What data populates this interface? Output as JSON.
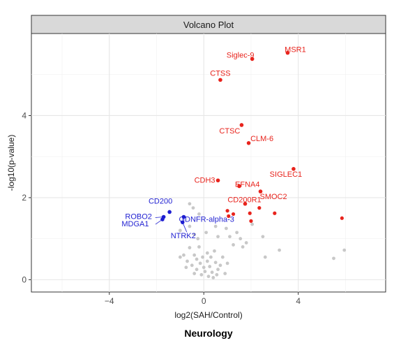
{
  "chart_data": {
    "type": "scatter",
    "title": "Volcano Plot",
    "caption": "Neurology",
    "xlabel": "log2(SAH/Control)",
    "ylabel": "-log10(p-value)",
    "xlim": [
      -7.3,
      7.7
    ],
    "ylim": [
      -0.3,
      6.0
    ],
    "x_ticks": [
      -4,
      0,
      4
    ],
    "y_ticks": [
      0,
      2,
      4
    ],
    "grid": true,
    "colors": {
      "up": "#e8231c",
      "down": "#1f1fd1",
      "ns": "#c8c8c8",
      "strip": "#d9d9d9"
    },
    "labeled_points": [
      {
        "label": "MSR1",
        "x": 3.55,
        "y": 5.53,
        "group": "up"
      },
      {
        "label": "Siglec-9",
        "x": 2.05,
        "y": 5.38,
        "group": "up"
      },
      {
        "label": "CTSS",
        "x": 0.7,
        "y": 4.87,
        "group": "up"
      },
      {
        "label": "CTSC",
        "x": 1.6,
        "y": 3.77,
        "group": "up"
      },
      {
        "label": "CLM-6",
        "x": 1.9,
        "y": 3.33,
        "group": "up"
      },
      {
        "label": "SIGLEC1",
        "x": 3.8,
        "y": 2.7,
        "group": "up"
      },
      {
        "label": "CDH3",
        "x": 0.6,
        "y": 2.42,
        "group": "up"
      },
      {
        "label": "EFNA4",
        "x": 1.5,
        "y": 2.28,
        "group": "up"
      },
      {
        "label": "SMOC2",
        "x": 2.4,
        "y": 2.15,
        "group": "up"
      },
      {
        "label": "CD200R1",
        "x": 1.75,
        "y": 1.85,
        "group": "up"
      },
      {
        "label": "CD200",
        "x": -1.45,
        "y": 1.65,
        "group": "down"
      },
      {
        "label": "ROBO2",
        "x": -1.7,
        "y": 1.53,
        "group": "down"
      },
      {
        "label": "MDGA1",
        "x": -1.75,
        "y": 1.47,
        "group": "down"
      },
      {
        "label": "GDNFR-alpha-3",
        "x": -0.85,
        "y": 1.53,
        "group": "down"
      },
      {
        "label": "NTRK2",
        "x": -0.9,
        "y": 1.4,
        "group": "down"
      }
    ],
    "other_up_points": [
      {
        "x": 2.35,
        "y": 1.75
      },
      {
        "x": 1.0,
        "y": 1.68
      },
      {
        "x": 1.25,
        "y": 1.6
      },
      {
        "x": 1.95,
        "y": 1.62
      },
      {
        "x": 3.0,
        "y": 1.62
      },
      {
        "x": 5.85,
        "y": 1.5
      },
      {
        "x": 1.05,
        "y": 1.55
      },
      {
        "x": 2.0,
        "y": 1.43
      }
    ],
    "ns_points": [
      {
        "x": -0.6,
        "y": 1.85
      },
      {
        "x": -0.45,
        "y": 1.75
      },
      {
        "x": -0.2,
        "y": 1.6
      },
      {
        "x": -0.6,
        "y": 1.3
      },
      {
        "x": -1.0,
        "y": 1.2
      },
      {
        "x": -0.4,
        "y": 1.1
      },
      {
        "x": -0.25,
        "y": 1.0
      },
      {
        "x": 0.1,
        "y": 1.15
      },
      {
        "x": 0.5,
        "y": 1.3
      },
      {
        "x": 0.6,
        "y": 1.05
      },
      {
        "x": 0.95,
        "y": 1.25
      },
      {
        "x": 1.1,
        "y": 1.05
      },
      {
        "x": 1.4,
        "y": 1.15
      },
      {
        "x": 1.55,
        "y": 1.0
      },
      {
        "x": 2.05,
        "y": 1.35
      },
      {
        "x": 1.8,
        "y": 0.9
      },
      {
        "x": 1.65,
        "y": 0.8
      },
      {
        "x": 1.25,
        "y": 0.85
      },
      {
        "x": 2.5,
        "y": 1.05
      },
      {
        "x": 3.2,
        "y": 0.72
      },
      {
        "x": 2.6,
        "y": 0.55
      },
      {
        "x": 5.5,
        "y": 0.52
      },
      {
        "x": 5.95,
        "y": 0.72
      },
      {
        "x": -0.2,
        "y": 0.8
      },
      {
        "x": -0.6,
        "y": 0.78
      },
      {
        "x": -0.85,
        "y": 0.6
      },
      {
        "x": -1.0,
        "y": 0.55
      },
      {
        "x": -0.7,
        "y": 0.45
      },
      {
        "x": -0.4,
        "y": 0.6
      },
      {
        "x": -0.3,
        "y": 0.5
      },
      {
        "x": -0.15,
        "y": 0.4
      },
      {
        "x": 0.0,
        "y": 0.3
      },
      {
        "x": 0.15,
        "y": 0.45
      },
      {
        "x": 0.3,
        "y": 0.55
      },
      {
        "x": 0.5,
        "y": 0.42
      },
      {
        "x": 0.7,
        "y": 0.35
      },
      {
        "x": 0.8,
        "y": 0.55
      },
      {
        "x": 0.45,
        "y": 0.7
      },
      {
        "x": 0.15,
        "y": 0.65
      },
      {
        "x": -0.5,
        "y": 0.35
      },
      {
        "x": -0.75,
        "y": 0.3
      },
      {
        "x": -0.3,
        "y": 0.25
      },
      {
        "x": 0.05,
        "y": 0.2
      },
      {
        "x": 0.35,
        "y": 0.18
      },
      {
        "x": 0.6,
        "y": 0.25
      },
      {
        "x": -0.1,
        "y": 0.12
      },
      {
        "x": 0.2,
        "y": 0.08
      },
      {
        "x": 0.4,
        "y": 0.05
      },
      {
        "x": -0.4,
        "y": 0.15
      },
      {
        "x": 0.9,
        "y": 0.15
      },
      {
        "x": 0.25,
        "y": 0.32
      },
      {
        "x": -0.05,
        "y": 0.55
      },
      {
        "x": 1.0,
        "y": 0.4
      },
      {
        "x": 0.55,
        "y": 0.12
      }
    ]
  }
}
